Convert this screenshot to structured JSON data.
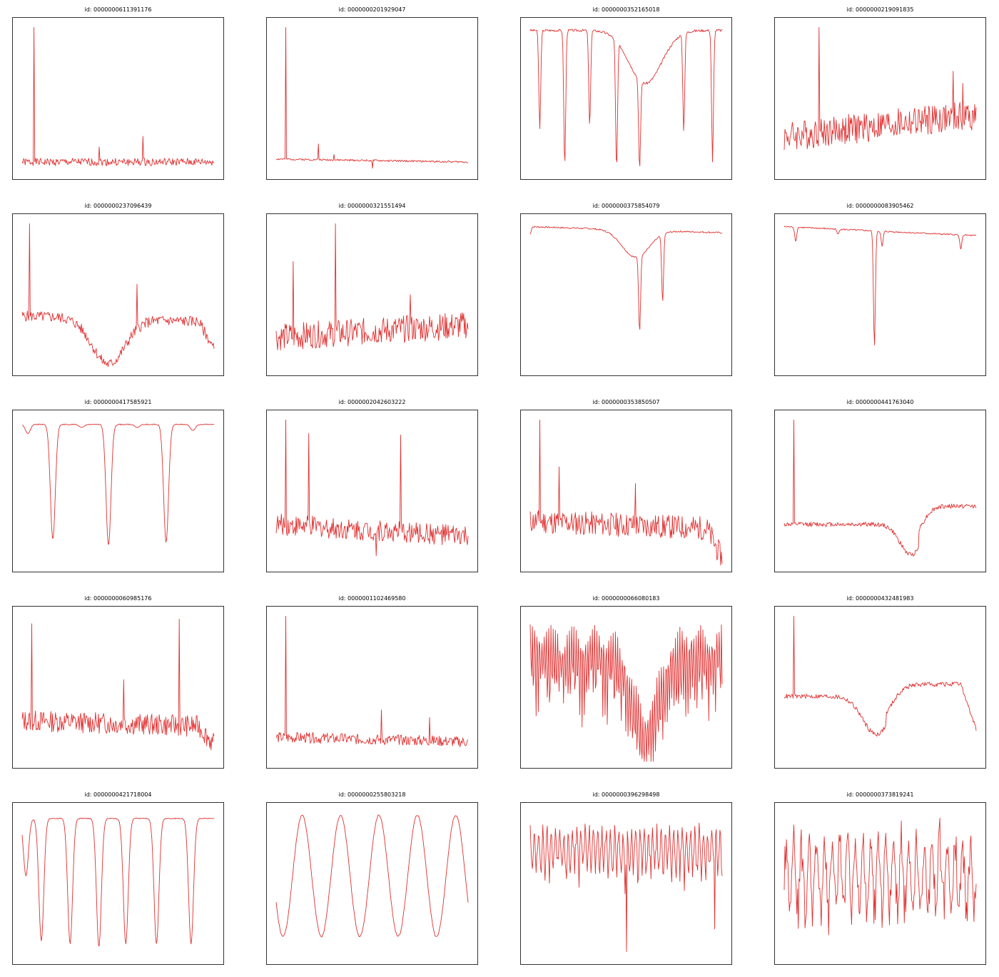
{
  "figure": {
    "line_color": "#e03030",
    "frame_color": "#000000",
    "background": "#ffffff"
  },
  "chart_data": [
    {
      "type": "line",
      "title": "id: 0000000611391176",
      "ylim": [
        0,
        100
      ],
      "shape": {
        "kind": "spike",
        "base": 8,
        "noise": 2.5,
        "spikes": [
          [
            0.06,
            97
          ],
          [
            0.63,
            25
          ],
          [
            0.4,
            18
          ]
        ],
        "seed": 1
      }
    },
    {
      "type": "line",
      "title": "id: 0000000201929047",
      "ylim": [
        0,
        100
      ],
      "shape": {
        "kind": "spike",
        "base": 10,
        "noise": 0.6,
        "trend": -2,
        "spikes": [
          [
            0.05,
            97
          ],
          [
            0.22,
            20
          ],
          [
            0.3,
            13
          ]
        ],
        "dip": [
          [
            0.5,
            -5
          ]
        ],
        "seed": 2
      }
    },
    {
      "type": "line",
      "title": "id: 0000000352165018",
      "ylim": [
        0,
        100
      ],
      "shape": {
        "kind": "eclipse",
        "base": 95,
        "noise": 0.8,
        "dips": [
          [
            0.05,
            30
          ],
          [
            0.18,
            5
          ],
          [
            0.31,
            32
          ],
          [
            0.45,
            3
          ],
          [
            0.57,
            3
          ],
          [
            0.8,
            28
          ],
          [
            0.95,
            8
          ]
        ],
        "sag": [
          [
            0.6,
            0.12,
            35
          ]
        ],
        "seed": 3
      }
    },
    {
      "type": "line",
      "title": "id: 0000000219091835",
      "ylim": [
        0,
        100
      ],
      "shape": {
        "kind": "spike",
        "base": 25,
        "noise": 10,
        "trend": 14,
        "spikes": [
          [
            0.18,
            97
          ],
          [
            0.93,
            60
          ],
          [
            0.88,
            68
          ]
        ],
        "seed": 4
      }
    },
    {
      "type": "line",
      "title": "id: 0000000237096439",
      "ylim": [
        0,
        100
      ],
      "shape": {
        "kind": "spike",
        "base": 36,
        "noise": 3.5,
        "trend": -4,
        "spikes": [
          [
            0.04,
            97
          ],
          [
            0.6,
            57
          ]
        ],
        "sag": [
          [
            0.45,
            0.12,
            30
          ]
        ],
        "drop_end": 18,
        "seed": 5
      }
    },
    {
      "type": "line",
      "title": "id: 0000000321551494",
      "ylim": [
        0,
        100
      ],
      "shape": {
        "kind": "spike",
        "base": 22,
        "noise": 9,
        "trend": 8,
        "spikes": [
          [
            0.31,
            97
          ],
          [
            0.09,
            72
          ],
          [
            0.7,
            50
          ]
        ],
        "seed": 6
      }
    },
    {
      "type": "line",
      "title": "id: 0000000375854079",
      "ylim": [
        0,
        100
      ],
      "shape": {
        "kind": "eclipse",
        "base": 95,
        "noise": 0.5,
        "trend": -4,
        "dips": [
          [
            0.0,
            90
          ],
          [
            0.57,
            25
          ],
          [
            0.69,
            45
          ]
        ],
        "sag": [
          [
            0.55,
            0.1,
            18
          ]
        ],
        "seed": 7
      }
    },
    {
      "type": "line",
      "title": "id: 0000000083905462",
      "ylim": [
        0,
        100
      ],
      "shape": {
        "kind": "eclipse",
        "base": 95,
        "noise": 0.5,
        "trend": -6,
        "dips": [
          [
            0.06,
            85
          ],
          [
            0.28,
            90
          ],
          [
            0.51,
            82
          ],
          [
            0.92,
            80
          ],
          [
            0.47,
            15
          ]
        ],
        "seed": 8
      }
    },
    {
      "type": "line",
      "title": "id: 0000000417585921",
      "ylim": [
        0,
        100
      ],
      "shape": {
        "kind": "periodic",
        "base": 94,
        "noise": 0.3,
        "dips": [
          [
            0.03,
            88
          ],
          [
            0.16,
            18
          ],
          [
            0.31,
            92
          ],
          [
            0.45,
            14
          ],
          [
            0.6,
            92
          ],
          [
            0.75,
            16
          ],
          [
            0.89,
            90
          ]
        ],
        "seed": 9
      }
    },
    {
      "type": "line",
      "title": "id: 0000002042603222",
      "ylim": [
        0,
        100
      ],
      "shape": {
        "kind": "spike",
        "base": 28,
        "noise": 7,
        "trend": -8,
        "spikes": [
          [
            0.05,
            97
          ],
          [
            0.17,
            88
          ],
          [
            0.65,
            87
          ]
        ],
        "dip": [
          [
            0.52,
            -15
          ]
        ],
        "seed": 10
      }
    },
    {
      "type": "line",
      "title": "id: 0000000353850507",
      "ylim": [
        0,
        100
      ],
      "shape": {
        "kind": "spike",
        "base": 30,
        "noise": 8,
        "trend": -5,
        "spikes": [
          [
            0.05,
            97
          ],
          [
            0.15,
            66
          ],
          [
            0.55,
            55
          ]
        ],
        "drop_end": 20,
        "seed": 11
      }
    },
    {
      "type": "line",
      "title": "id: 0000000441763040",
      "ylim": [
        0,
        100
      ],
      "shape": {
        "kind": "spike",
        "base": 28,
        "noise": 1.5,
        "spikes": [
          [
            0.05,
            97
          ]
        ],
        "sag": [
          [
            0.66,
            0.08,
            20
          ]
        ],
        "step": [
          [
            0.7,
            12
          ]
        ],
        "seed": 12
      }
    },
    {
      "type": "line",
      "title": "id: 0000000060985176",
      "ylim": [
        0,
        100
      ],
      "shape": {
        "kind": "spike",
        "base": 28,
        "noise": 7,
        "trend": -4,
        "spikes": [
          [
            0.05,
            92
          ],
          [
            0.82,
            95
          ],
          [
            0.53,
            55
          ]
        ],
        "drop_end": 12,
        "seed": 13
      }
    },
    {
      "type": "line",
      "title": "id: 0000001102469580",
      "ylim": [
        0,
        100
      ],
      "shape": {
        "kind": "spike",
        "base": 17,
        "noise": 3.5,
        "trend": -3,
        "spikes": [
          [
            0.05,
            97
          ],
          [
            0.55,
            35
          ],
          [
            0.8,
            30
          ]
        ],
        "seed": 14
      }
    },
    {
      "type": "line",
      "title": "id: 0000000066080183",
      "ylim": [
        0,
        100
      ],
      "shape": {
        "kind": "dense",
        "base": 92,
        "noise": 1,
        "depth": 60,
        "period": 0.012,
        "sag": [
          [
            0.6,
            0.1,
            50
          ]
        ],
        "seed": 15
      }
    },
    {
      "type": "line",
      "title": "id: 0000000432481983",
      "ylim": [
        0,
        100
      ],
      "shape": {
        "kind": "spike",
        "base": 44,
        "noise": 1.5,
        "spikes": [
          [
            0.05,
            97
          ]
        ],
        "sag": [
          [
            0.48,
            0.1,
            25
          ]
        ],
        "step": [
          [
            0.53,
            8
          ]
        ],
        "drop_end": 30,
        "seed": 16
      }
    },
    {
      "type": "line",
      "title": "id: 0000000421718004",
      "ylim": [
        0,
        100
      ],
      "shape": {
        "kind": "periodic",
        "base": 93,
        "noise": 0.3,
        "dips": [
          [
            0.02,
            55
          ],
          [
            0.1,
            12
          ],
          [
            0.25,
            10
          ],
          [
            0.4,
            8
          ],
          [
            0.54,
            10
          ],
          [
            0.7,
            10
          ],
          [
            0.88,
            10
          ]
        ],
        "seed": 17
      }
    },
    {
      "type": "line",
      "title": "id: 0000000255803218",
      "ylim": [
        0,
        100
      ],
      "shape": {
        "kind": "wave",
        "base": 55,
        "amp": 40,
        "noise": 1,
        "period": 0.2,
        "seed": 18
      }
    },
    {
      "type": "line",
      "title": "id: 0000000396298498",
      "ylim": [
        0,
        100
      ],
      "shape": {
        "kind": "dense",
        "base": 88,
        "noise": 3,
        "depth": 38,
        "period": 0.022,
        "dips_extra": [
          [
            0.5,
            5
          ],
          [
            0.96,
            20
          ]
        ],
        "seed": 19
      }
    },
    {
      "type": "line",
      "title": "id: 0000000373819241",
      "ylim": [
        0,
        100
      ],
      "shape": {
        "kind": "wave_noise",
        "base": 55,
        "amp": 22,
        "noise": 10,
        "period": 0.04,
        "seed": 20
      }
    }
  ]
}
